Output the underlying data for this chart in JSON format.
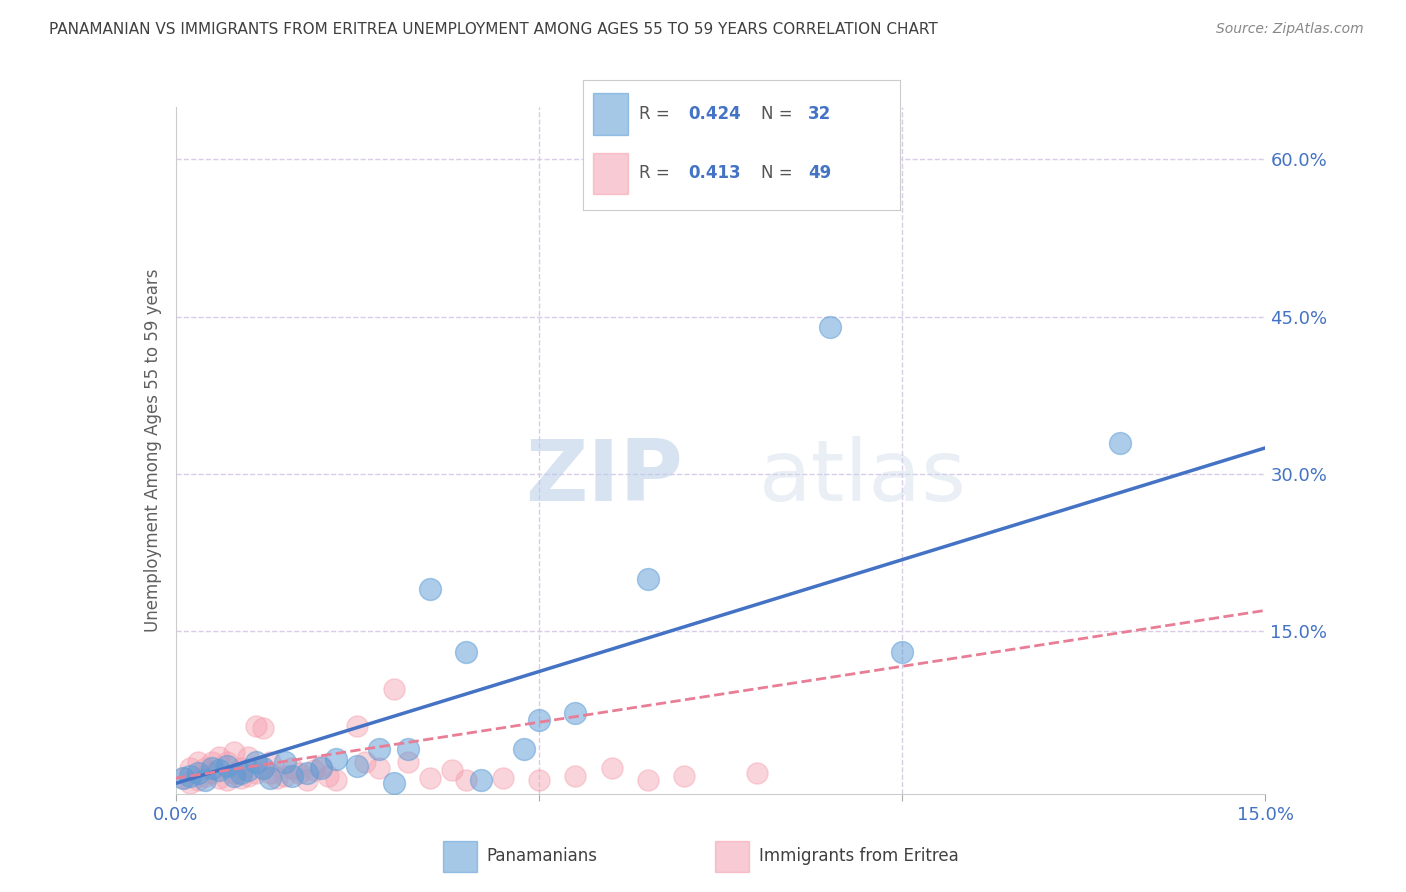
{
  "title": "PANAMANIAN VS IMMIGRANTS FROM ERITREA UNEMPLOYMENT AMONG AGES 55 TO 59 YEARS CORRELATION CHART",
  "source": "Source: ZipAtlas.com",
  "ylabel": "Unemployment Among Ages 55 to 59 years",
  "x_min": 0.0,
  "x_max": 0.15,
  "y_min": -0.005,
  "y_max": 0.65,
  "blue_R": "0.424",
  "blue_N": "32",
  "pink_R": "0.413",
  "pink_N": "49",
  "watermark_zip": "ZIP",
  "watermark_atlas": "atlas",
  "blue_scatter_x": [
    0.001,
    0.002,
    0.003,
    0.004,
    0.005,
    0.006,
    0.007,
    0.008,
    0.009,
    0.01,
    0.011,
    0.012,
    0.013,
    0.015,
    0.016,
    0.018,
    0.02,
    0.022,
    0.025,
    0.028,
    0.03,
    0.032,
    0.035,
    0.04,
    0.042,
    0.048,
    0.05,
    0.055,
    0.065,
    0.09,
    0.1,
    0.13
  ],
  "blue_scatter_y": [
    0.01,
    0.012,
    0.015,
    0.008,
    0.02,
    0.018,
    0.022,
    0.012,
    0.015,
    0.018,
    0.025,
    0.02,
    0.01,
    0.025,
    0.012,
    0.015,
    0.02,
    0.028,
    0.022,
    0.038,
    0.005,
    0.038,
    0.19,
    0.13,
    0.008,
    0.038,
    0.065,
    0.072,
    0.2,
    0.44,
    0.13,
    0.33
  ],
  "pink_scatter_x": [
    0.001,
    0.002,
    0.002,
    0.003,
    0.003,
    0.004,
    0.004,
    0.005,
    0.005,
    0.006,
    0.006,
    0.007,
    0.007,
    0.008,
    0.008,
    0.009,
    0.009,
    0.01,
    0.01,
    0.011,
    0.011,
    0.012,
    0.012,
    0.013,
    0.013,
    0.014,
    0.015,
    0.016,
    0.017,
    0.018,
    0.019,
    0.02,
    0.021,
    0.022,
    0.025,
    0.026,
    0.028,
    0.03,
    0.032,
    0.035,
    0.038,
    0.04,
    0.045,
    0.05,
    0.055,
    0.06,
    0.065,
    0.07,
    0.08
  ],
  "pink_scatter_y": [
    0.01,
    0.005,
    0.02,
    0.008,
    0.025,
    0.012,
    0.02,
    0.015,
    0.025,
    0.01,
    0.03,
    0.008,
    0.025,
    0.015,
    0.035,
    0.01,
    0.02,
    0.012,
    0.03,
    0.015,
    0.06,
    0.02,
    0.058,
    0.015,
    0.025,
    0.01,
    0.012,
    0.02,
    0.015,
    0.008,
    0.018,
    0.022,
    0.012,
    0.008,
    0.06,
    0.025,
    0.02,
    0.095,
    0.025,
    0.01,
    0.018,
    0.008,
    0.01,
    0.008,
    0.012,
    0.02,
    0.008,
    0.012,
    0.015
  ],
  "blue_line_x0": 0.0,
  "blue_line_y0": 0.005,
  "blue_line_x1": 0.15,
  "blue_line_y1": 0.325,
  "pink_line_x0": 0.0,
  "pink_line_y0": 0.01,
  "pink_line_x1": 0.15,
  "pink_line_y1": 0.17,
  "blue_color": "#5b9bd5",
  "pink_color": "#f4a0b0",
  "blue_line_color": "#4472c4",
  "pink_line_color": "#e87d96",
  "background_color": "#ffffff",
  "grid_color": "#d8cce8",
  "title_color": "#404040",
  "source_color": "#888888",
  "label_color": "#4472c4",
  "ylabel_color": "#606060"
}
